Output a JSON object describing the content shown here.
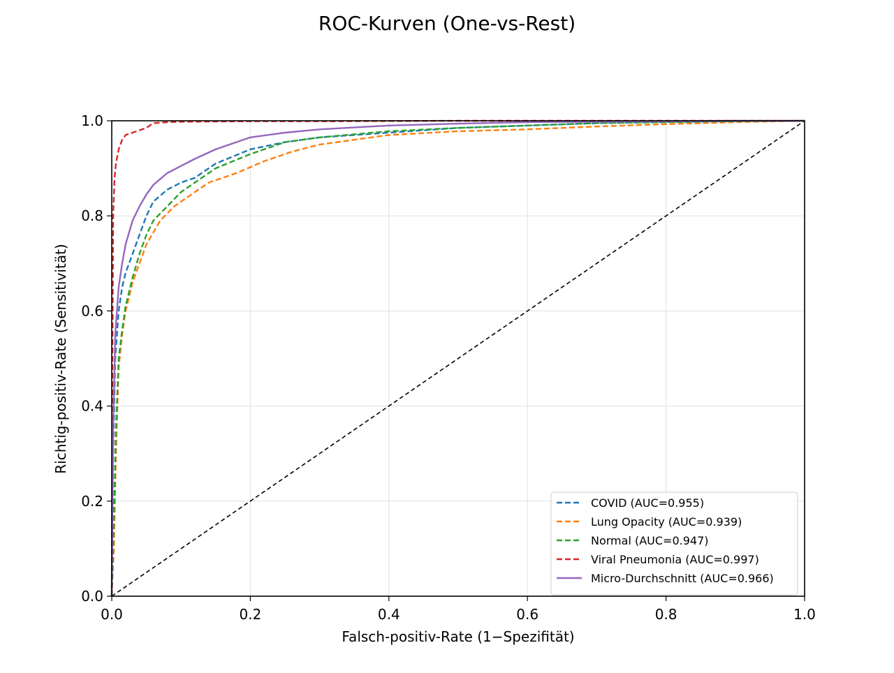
{
  "chart_data": {
    "type": "line",
    "title": "ROC-Kurven (One-vs-Rest)",
    "xlabel": "Falsch-positiv-Rate (1−Spezifität)",
    "ylabel": "Richtig-positiv-Rate (Sensitivität)",
    "xlim": [
      0.0,
      1.0
    ],
    "ylim": [
      0.0,
      1.0
    ],
    "xticks": [
      "0.0",
      "0.2",
      "0.4",
      "0.6",
      "0.8",
      "1.0"
    ],
    "yticks": [
      "0.0",
      "0.2",
      "0.4",
      "0.6",
      "0.8",
      "1.0"
    ],
    "grid": true,
    "legend_position": "lower-right",
    "series": [
      {
        "name": "COVID (AUC=0.955)",
        "color": "#1f77b4",
        "style": "dashed",
        "x": [
          0,
          0.002,
          0.005,
          0.01,
          0.015,
          0.02,
          0.03,
          0.04,
          0.05,
          0.06,
          0.08,
          0.1,
          0.12,
          0.15,
          0.2,
          0.25,
          0.3,
          0.4,
          0.5,
          0.6,
          0.7,
          0.8,
          0.9,
          1.0
        ],
        "y": [
          0,
          0.3,
          0.5,
          0.6,
          0.65,
          0.68,
          0.72,
          0.76,
          0.8,
          0.83,
          0.855,
          0.87,
          0.88,
          0.91,
          0.94,
          0.955,
          0.965,
          0.975,
          0.985,
          0.99,
          0.995,
          0.997,
          0.999,
          1.0
        ]
      },
      {
        "name": "Lung Opacity (AUC=0.939)",
        "color": "#ff7f0e",
        "style": "dashed",
        "x": [
          0,
          0.003,
          0.006,
          0.01,
          0.015,
          0.02,
          0.03,
          0.04,
          0.05,
          0.07,
          0.09,
          0.11,
          0.14,
          0.18,
          0.22,
          0.26,
          0.3,
          0.35,
          0.4,
          0.5,
          0.6,
          0.7,
          0.8,
          0.9,
          1.0
        ],
        "y": [
          0,
          0.1,
          0.3,
          0.48,
          0.55,
          0.6,
          0.66,
          0.7,
          0.74,
          0.79,
          0.82,
          0.84,
          0.87,
          0.89,
          0.915,
          0.935,
          0.95,
          0.96,
          0.97,
          0.978,
          0.982,
          0.988,
          0.993,
          0.997,
          1.0
        ]
      },
      {
        "name": "Normal (AUC=0.947)",
        "color": "#2ca02c",
        "style": "dashed",
        "x": [
          0,
          0.003,
          0.006,
          0.01,
          0.015,
          0.02,
          0.03,
          0.04,
          0.05,
          0.06,
          0.08,
          0.1,
          0.12,
          0.15,
          0.2,
          0.25,
          0.3,
          0.4,
          0.5,
          0.6,
          0.7,
          0.8,
          0.9,
          1.0
        ],
        "y": [
          0,
          0.15,
          0.35,
          0.5,
          0.56,
          0.61,
          0.67,
          0.72,
          0.76,
          0.79,
          0.82,
          0.85,
          0.87,
          0.9,
          0.93,
          0.955,
          0.965,
          0.978,
          0.985,
          0.99,
          0.995,
          0.997,
          0.999,
          1.0
        ]
      },
      {
        "name": "Viral Pneumonia (AUC=0.997)",
        "color": "#d62728",
        "style": "dashed",
        "x": [
          0,
          0.001,
          0.002,
          0.004,
          0.006,
          0.01,
          0.015,
          0.02,
          0.03,
          0.04,
          0.05,
          0.06,
          0.08,
          0.1,
          0.2,
          0.3,
          0.5,
          0.7,
          1.0
        ],
        "y": [
          0,
          0.5,
          0.8,
          0.88,
          0.91,
          0.94,
          0.96,
          0.97,
          0.975,
          0.98,
          0.985,
          0.995,
          0.997,
          0.998,
          0.999,
          0.999,
          1.0,
          1.0,
          1.0
        ]
      },
      {
        "name": "Micro-Durchschnitt (AUC=0.966)",
        "color": "#9467bd",
        "style": "solid",
        "x": [
          0,
          0.002,
          0.005,
          0.01,
          0.015,
          0.02,
          0.03,
          0.04,
          0.05,
          0.06,
          0.08,
          0.1,
          0.12,
          0.15,
          0.2,
          0.25,
          0.3,
          0.4,
          0.5,
          0.6,
          0.7,
          0.8,
          0.9,
          1.0
        ],
        "y": [
          0,
          0.35,
          0.55,
          0.65,
          0.7,
          0.74,
          0.79,
          0.82,
          0.845,
          0.865,
          0.89,
          0.905,
          0.92,
          0.94,
          0.965,
          0.975,
          0.982,
          0.99,
          0.994,
          0.997,
          0.998,
          0.999,
          1.0,
          1.0
        ]
      }
    ],
    "diagonal": {
      "color": "#000000",
      "style": "dashed",
      "x": [
        0,
        1
      ],
      "y": [
        0,
        1
      ]
    }
  }
}
